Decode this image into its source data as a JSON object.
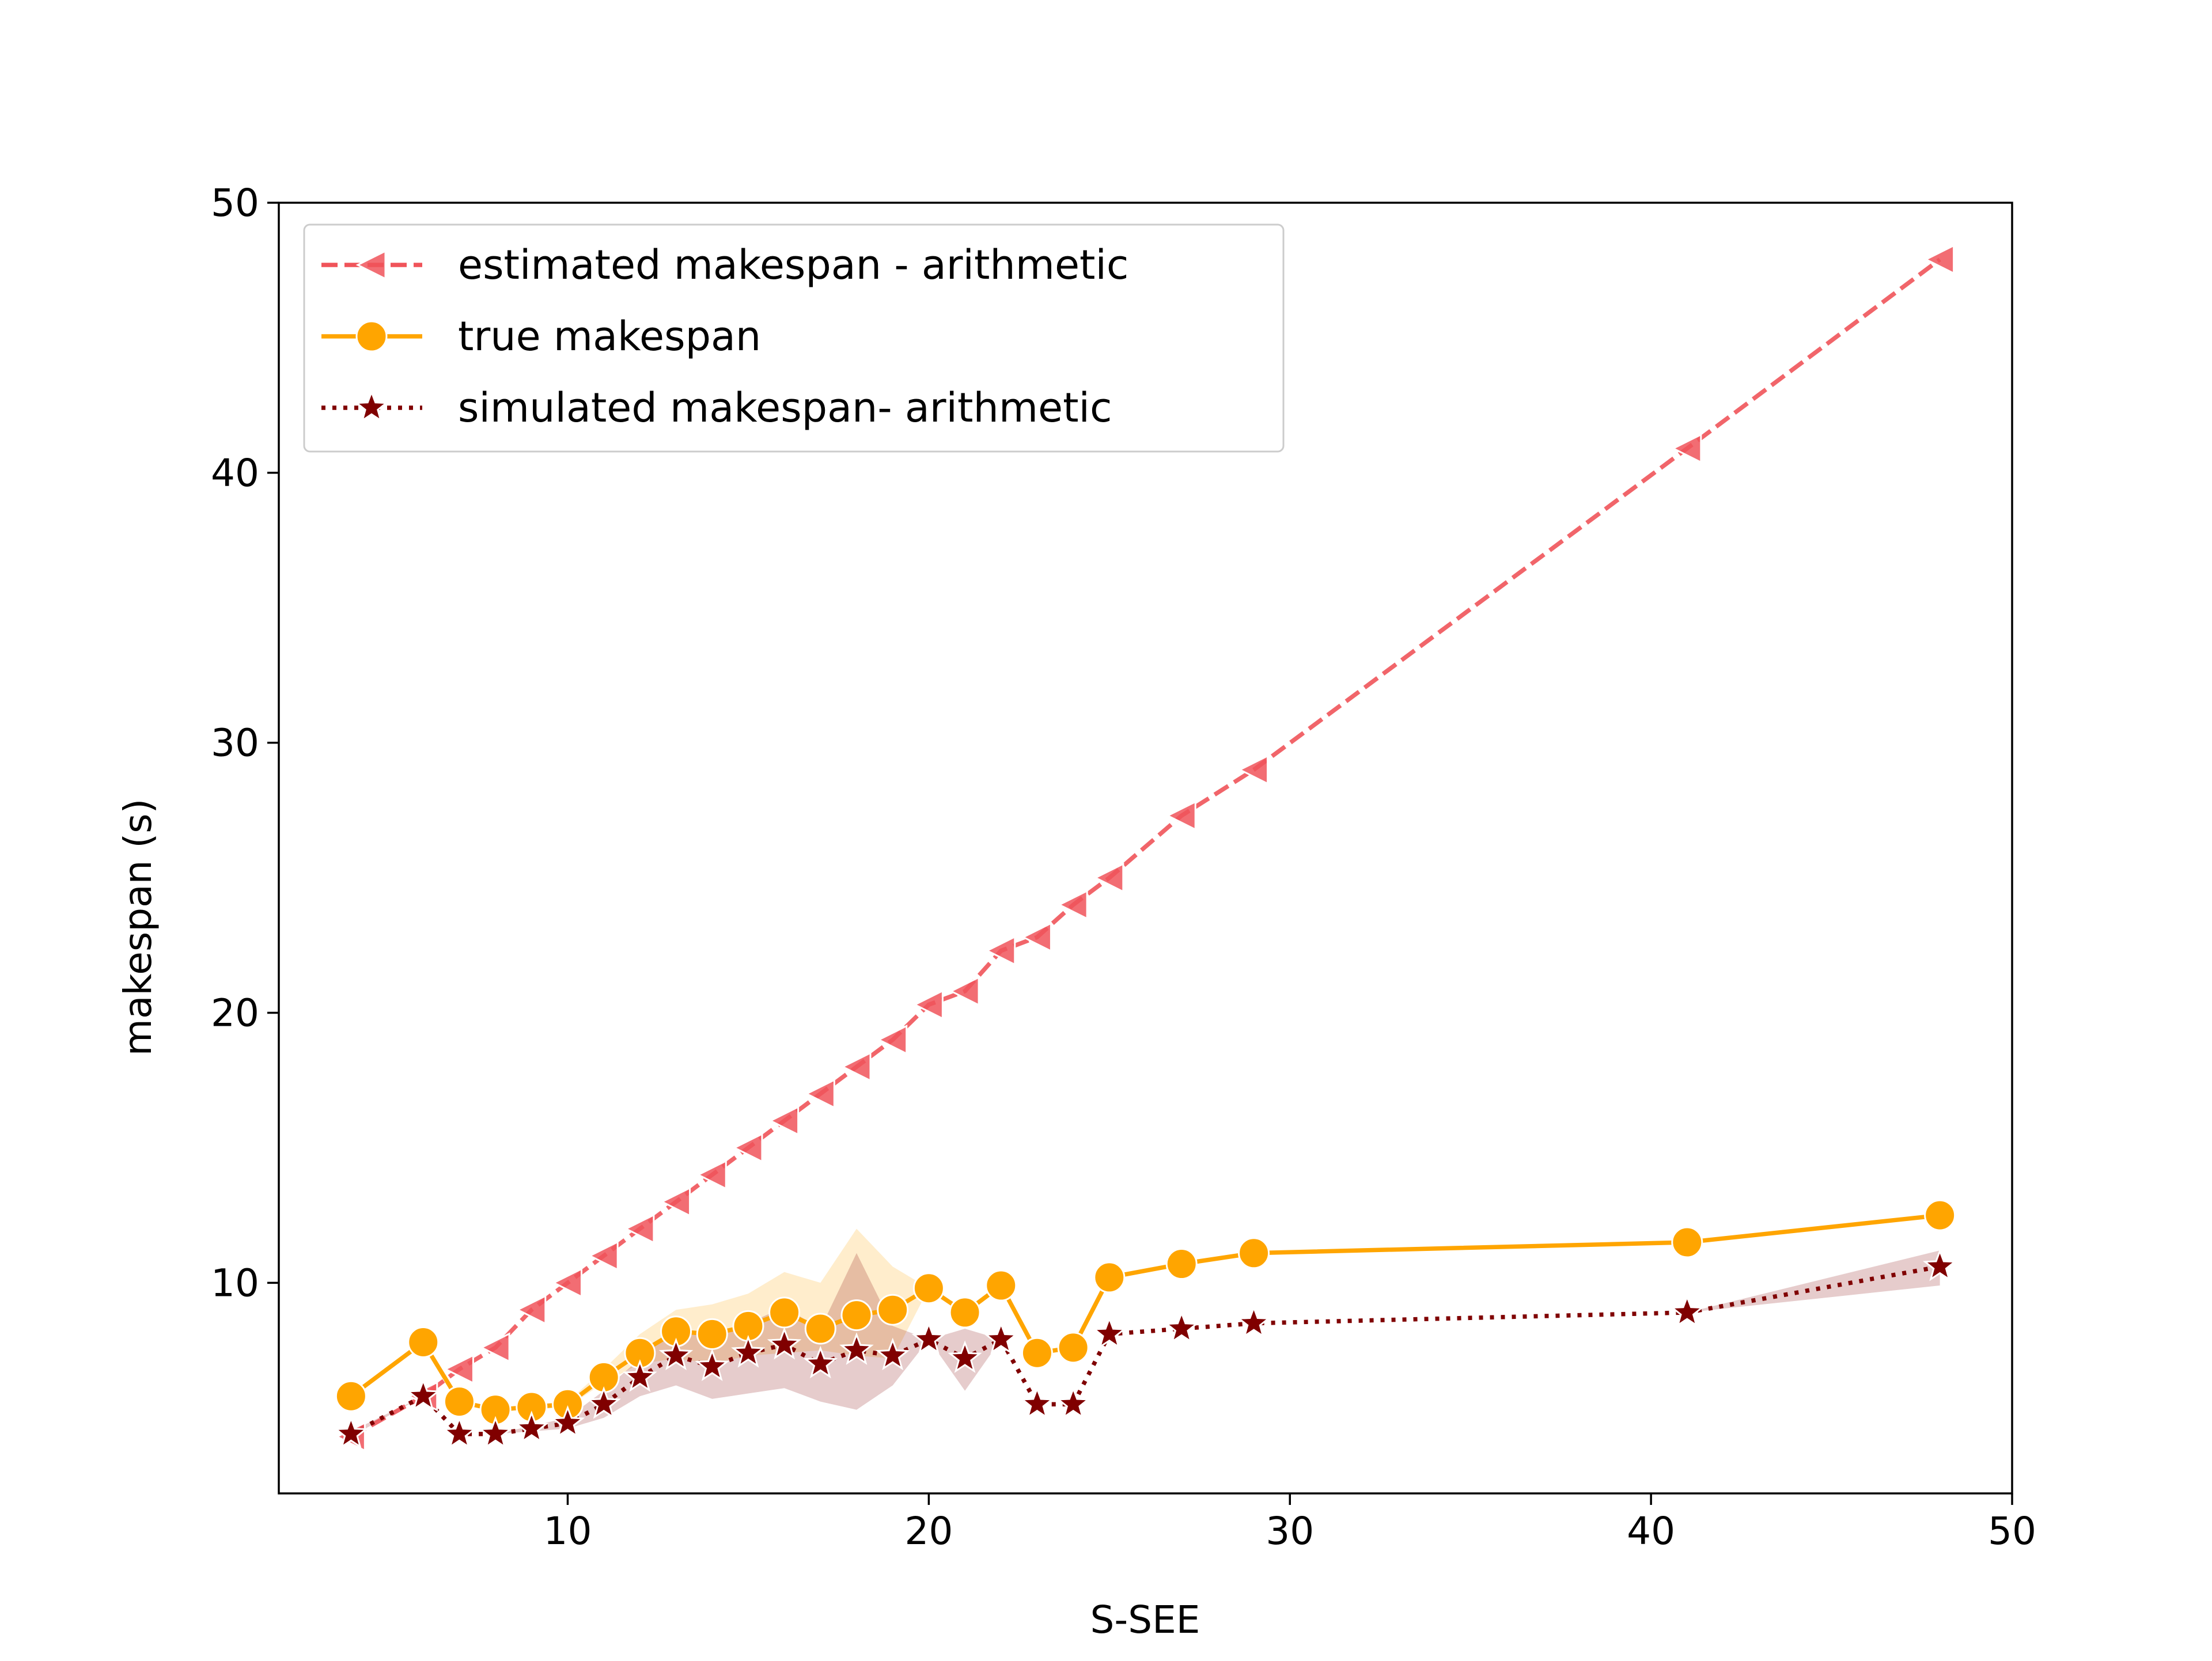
{
  "chart_data": {
    "type": "line",
    "title": "",
    "xlabel": "S-SEE",
    "ylabel": "makespan (s)",
    "xlim": [
      2,
      50
    ],
    "ylim": [
      2.2,
      50
    ],
    "xticks": [
      10,
      20,
      30,
      40,
      50
    ],
    "yticks": [
      10,
      20,
      30,
      40,
      50
    ],
    "grid": false,
    "legend_position": "top-left",
    "series": [
      {
        "name": "estimated makespan - arithmetic",
        "color": "#f0545a",
        "line_style": "dashed",
        "marker": "triangle-left",
        "x": [
          4,
          6,
          7,
          8,
          9,
          10,
          11,
          12,
          13,
          14,
          15,
          16,
          17,
          18,
          19,
          20,
          21,
          22,
          23,
          24,
          25,
          27,
          29,
          41,
          48
        ],
        "y": [
          4.3,
          5.8,
          6.8,
          7.6,
          9.0,
          10.0,
          11.0,
          12.0,
          13.0,
          14.0,
          15.0,
          16.0,
          17.0,
          18.0,
          19.0,
          20.3,
          20.8,
          22.3,
          22.8,
          24.0,
          25.0,
          27.3,
          29.0,
          40.9,
          47.9
        ]
      },
      {
        "name": "true makespan",
        "color": "#ffa500",
        "line_style": "solid",
        "marker": "circle",
        "x": [
          4,
          6,
          7,
          8,
          9,
          10,
          11,
          12,
          13,
          14,
          15,
          16,
          17,
          18,
          19,
          20,
          21,
          22,
          23,
          24,
          25,
          27,
          29,
          41,
          48
        ],
        "y": [
          5.8,
          7.8,
          5.6,
          5.3,
          5.4,
          5.5,
          6.5,
          7.4,
          8.2,
          8.1,
          8.4,
          8.9,
          8.3,
          8.8,
          9.0,
          9.8,
          8.9,
          9.9,
          7.4,
          7.6,
          10.2,
          10.7,
          11.1,
          11.5,
          12.5
        ],
        "band_low": [
          5.8,
          7.8,
          5.6,
          5.3,
          5.3,
          5.4,
          6.3,
          7.0,
          7.2,
          7.0,
          7.3,
          7.4,
          7.5,
          7.3,
          7.2,
          9.8,
          8.9,
          9.9,
          7.4,
          7.6,
          10.2,
          10.7,
          11.1,
          11.5,
          12.5
        ],
        "band_high": [
          5.8,
          7.8,
          5.6,
          5.3,
          5.5,
          5.6,
          6.8,
          8.1,
          9.0,
          9.2,
          9.6,
          10.4,
          10.0,
          12.0,
          10.6,
          9.8,
          8.9,
          9.9,
          7.4,
          7.6,
          10.2,
          10.7,
          11.1,
          11.5,
          12.5
        ]
      },
      {
        "name": "simulated makespan- arithmetic",
        "color": "#800000",
        "line_style": "dotted",
        "marker": "star",
        "x": [
          4,
          6,
          7,
          8,
          9,
          10,
          11,
          12,
          13,
          14,
          15,
          16,
          17,
          18,
          19,
          20,
          21,
          22,
          23,
          24,
          25,
          27,
          29,
          41,
          48
        ],
        "y": [
          4.4,
          5.8,
          4.4,
          4.4,
          4.6,
          4.8,
          5.5,
          6.5,
          7.3,
          6.9,
          7.4,
          7.7,
          7.0,
          7.5,
          7.3,
          7.9,
          7.2,
          7.9,
          5.5,
          5.5,
          8.1,
          8.3,
          8.5,
          8.9,
          10.6
        ],
        "band_low": [
          4.3,
          5.8,
          4.4,
          4.4,
          4.5,
          4.6,
          5.0,
          5.8,
          6.2,
          5.7,
          5.9,
          6.1,
          5.6,
          5.3,
          6.2,
          7.9,
          6.0,
          7.9,
          5.5,
          5.5,
          8.1,
          8.3,
          8.5,
          8.9,
          9.9
        ],
        "band_high": [
          4.5,
          5.8,
          4.4,
          4.4,
          4.7,
          5.0,
          6.0,
          7.2,
          8.3,
          8.0,
          8.5,
          9.1,
          8.3,
          11.1,
          8.4,
          7.9,
          8.3,
          7.9,
          5.5,
          5.5,
          8.1,
          8.3,
          8.5,
          8.9,
          11.2
        ]
      }
    ]
  }
}
